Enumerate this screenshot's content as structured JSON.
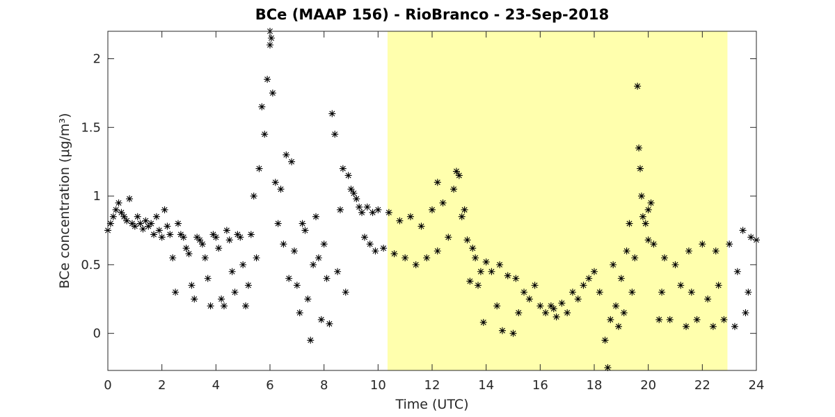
{
  "chart_data": {
    "type": "scatter",
    "title": "BCe (MAAP 156) - RioBranco - 23-Sep-2018",
    "x_label": "Time (UTC)",
    "y_label": "BCe concentration (μg/m³)",
    "xlim": [
      0,
      24
    ],
    "ylim": [
      -0.27,
      2.2
    ],
    "xticks": [
      0,
      2,
      4,
      6,
      8,
      10,
      12,
      14,
      16,
      18,
      20,
      22,
      24
    ],
    "yticks": [
      0,
      0.5,
      1,
      1.5,
      2
    ],
    "grid": false,
    "marker_color": "#000000",
    "shaded_region": [
      10.35,
      22.93
    ],
    "shaded_color": "#ffffad",
    "x": [
      0.0,
      0.1,
      0.2,
      0.3,
      0.4,
      0.5,
      0.6,
      0.7,
      0.8,
      0.9,
      1.0,
      1.1,
      1.2,
      1.3,
      1.4,
      1.5,
      1.6,
      1.7,
      1.8,
      1.9,
      2.0,
      2.1,
      2.2,
      2.3,
      2.4,
      2.5,
      2.6,
      2.7,
      2.8,
      2.9,
      3.0,
      3.1,
      3.2,
      3.3,
      3.4,
      3.5,
      3.6,
      3.7,
      3.8,
      3.9,
      4.0,
      4.1,
      4.2,
      4.3,
      4.4,
      4.5,
      4.6,
      4.7,
      4.8,
      4.9,
      5.0,
      5.1,
      5.2,
      5.3,
      5.4,
      5.5,
      5.6,
      5.7,
      5.8,
      5.9,
      6.0,
      6.1,
      6.2,
      6.3,
      6.4,
      6.5,
      6.6,
      6.7,
      6.8,
      6.9,
      7.0,
      7.1,
      7.2,
      7.3,
      7.4,
      7.5,
      7.6,
      7.7,
      7.8,
      7.9,
      8.0,
      8.1,
      8.2,
      8.3,
      8.4,
      8.5,
      8.6,
      8.7,
      8.8,
      8.9,
      9.0,
      9.1,
      9.2,
      9.3,
      9.4,
      9.5,
      9.6,
      9.7,
      9.8,
      9.9,
      10.0,
      10.2,
      10.4,
      10.6,
      10.8,
      11.0,
      11.2,
      11.4,
      11.6,
      11.8,
      12.0,
      12.2,
      12.4,
      12.6,
      12.8,
      13.0,
      13.1,
      13.2,
      13.3,
      13.4,
      13.5,
      13.6,
      13.7,
      13.8,
      13.9,
      14.0,
      14.2,
      14.4,
      14.5,
      14.6,
      14.8,
      15.0,
      15.1,
      15.2,
      15.4,
      15.6,
      15.8,
      16.0,
      16.2,
      16.4,
      16.6,
      16.8,
      17.0,
      17.2,
      17.4,
      17.6,
      17.8,
      18.0,
      18.2,
      18.4,
      18.5,
      18.6,
      18.7,
      18.8,
      18.9,
      19.0,
      19.1,
      19.2,
      19.3,
      19.4,
      19.5,
      19.6,
      19.65,
      19.7,
      19.75,
      19.8,
      19.9,
      20.0,
      20.1,
      20.2,
      20.4,
      20.5,
      20.6,
      20.8,
      21.0,
      21.2,
      21.4,
      21.5,
      21.6,
      21.8,
      22.0,
      22.2,
      22.4,
      22.5,
      22.6,
      22.8,
      23.0,
      23.2,
      23.3,
      23.5,
      23.6,
      23.7,
      23.8,
      24.0,
      6.0,
      6.05,
      12.2,
      12.9,
      16.5,
      20.0
    ],
    "values": [
      0.75,
      0.8,
      0.85,
      0.9,
      0.95,
      0.88,
      0.85,
      0.82,
      0.98,
      0.8,
      0.78,
      0.85,
      0.8,
      0.76,
      0.82,
      0.78,
      0.8,
      0.72,
      0.85,
      0.75,
      0.7,
      0.9,
      0.78,
      0.72,
      0.55,
      0.3,
      0.8,
      0.72,
      0.7,
      0.62,
      0.58,
      0.35,
      0.25,
      0.7,
      0.68,
      0.65,
      0.55,
      0.4,
      0.2,
      0.72,
      0.7,
      0.62,
      0.25,
      0.2,
      0.75,
      0.68,
      0.45,
      0.3,
      0.72,
      0.7,
      0.5,
      0.2,
      0.35,
      0.72,
      1.0,
      0.55,
      1.2,
      1.65,
      1.45,
      1.85,
      2.1,
      1.75,
      1.1,
      0.8,
      1.05,
      0.65,
      1.3,
      0.4,
      1.25,
      0.6,
      0.35,
      0.15,
      0.8,
      0.75,
      0.25,
      -0.05,
      0.5,
      0.85,
      0.55,
      0.1,
      0.65,
      0.4,
      0.07,
      1.6,
      1.45,
      0.45,
      0.9,
      1.2,
      0.3,
      1.15,
      1.05,
      1.02,
      0.98,
      0.92,
      0.88,
      0.7,
      0.92,
      0.65,
      0.88,
      0.6,
      0.9,
      0.62,
      0.88,
      0.58,
      0.82,
      0.55,
      0.85,
      0.5,
      0.78,
      0.55,
      0.9,
      0.6,
      0.95,
      0.7,
      1.05,
      1.15,
      0.85,
      0.9,
      0.68,
      0.38,
      0.62,
      0.55,
      0.35,
      0.45,
      0.08,
      0.52,
      0.45,
      0.2,
      0.5,
      0.02,
      0.42,
      0.0,
      0.4,
      0.15,
      0.3,
      0.25,
      0.35,
      0.2,
      0.15,
      0.2,
      0.12,
      0.22,
      0.15,
      0.3,
      0.25,
      0.35,
      0.4,
      0.45,
      0.3,
      -0.05,
      -0.25,
      0.1,
      0.5,
      0.2,
      0.05,
      0.4,
      0.15,
      0.6,
      0.8,
      0.3,
      0.55,
      1.8,
      1.35,
      1.2,
      1.0,
      0.85,
      0.8,
      0.9,
      0.95,
      0.65,
      0.1,
      0.3,
      0.55,
      0.1,
      0.5,
      0.35,
      0.05,
      0.6,
      0.3,
      0.1,
      0.65,
      0.25,
      0.05,
      0.6,
      0.35,
      0.1,
      0.65,
      0.05,
      0.45,
      0.75,
      0.15,
      0.3,
      0.7,
      0.68,
      2.2,
      2.15,
      1.1,
      1.18,
      0.18,
      0.68
    ]
  }
}
